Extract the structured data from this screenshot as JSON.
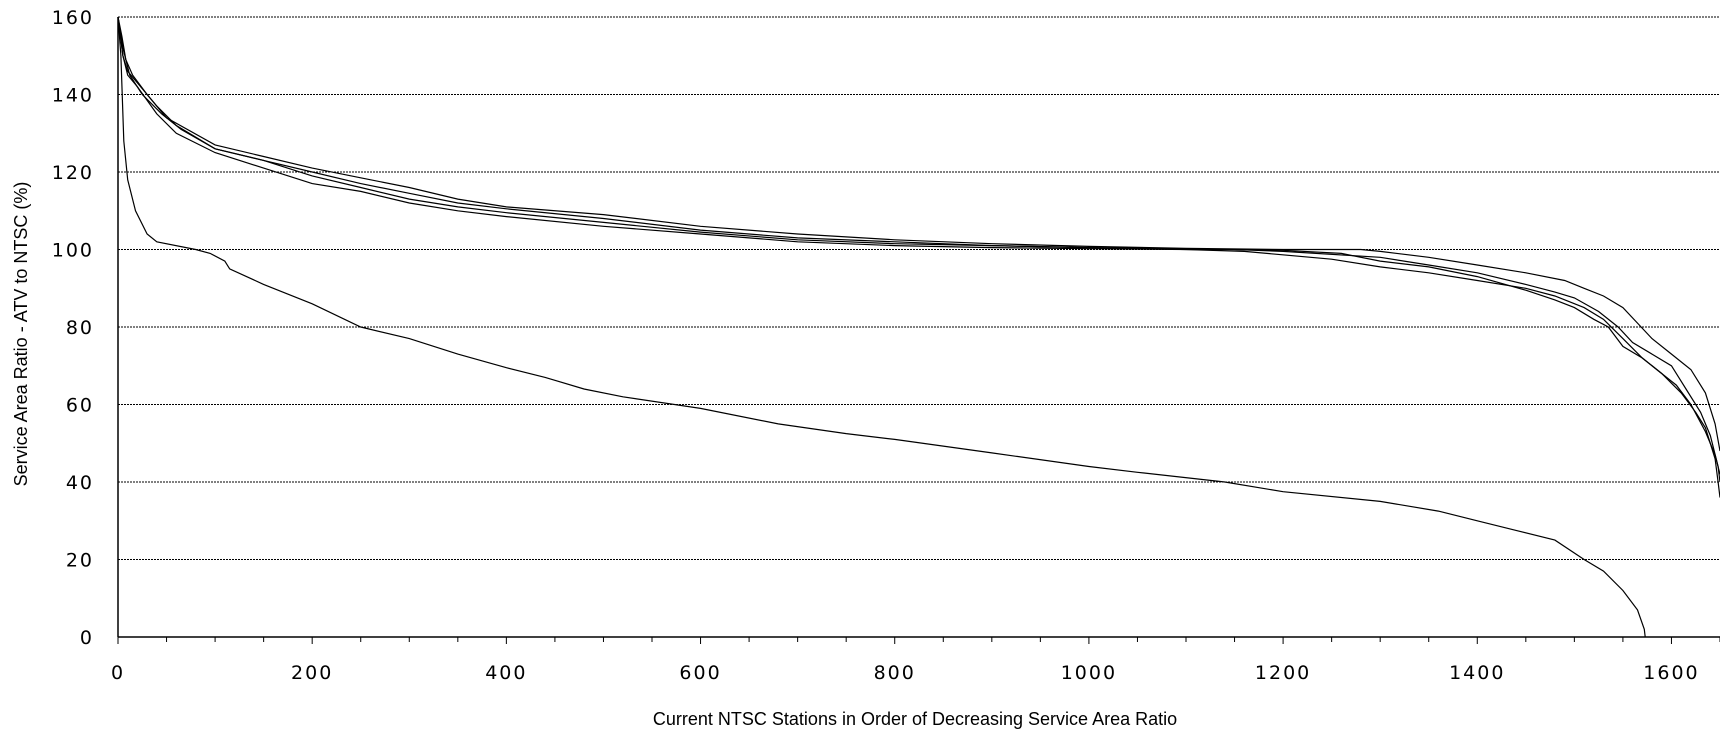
{
  "chart_data": {
    "type": "line",
    "title": "",
    "xlabel": "Current NTSC Stations in Order of Decreasing Service Area Ratio",
    "ylabel": "Service Area Ratio - ATV to NTSC (%)",
    "xlim": [
      0,
      1650
    ],
    "ylim": [
      0,
      160
    ],
    "x_ticks": [
      0,
      200,
      400,
      600,
      800,
      1000,
      1200,
      1400,
      1600
    ],
    "y_ticks": [
      0,
      20,
      40,
      60,
      80,
      100,
      120,
      140,
      160
    ],
    "grid": true,
    "legend": "none",
    "series": [
      {
        "points": [
          [
            0,
            160
          ],
          [
            3,
            150
          ],
          [
            6,
            128
          ],
          [
            10,
            118
          ],
          [
            18,
            110
          ],
          [
            30,
            104
          ],
          [
            40,
            102
          ],
          [
            80,
            100
          ],
          [
            95,
            99
          ],
          [
            110,
            97
          ],
          [
            115,
            95
          ],
          [
            150,
            91
          ],
          [
            200,
            86
          ],
          [
            250,
            80
          ],
          [
            300,
            77
          ],
          [
            350,
            73
          ],
          [
            400,
            69.5
          ],
          [
            440,
            67
          ],
          [
            480,
            64
          ],
          [
            520,
            62
          ],
          [
            600,
            59
          ],
          [
            680,
            55
          ],
          [
            750,
            52.5
          ],
          [
            800,
            51
          ],
          [
            900,
            47.5
          ],
          [
            1000,
            44
          ],
          [
            1050,
            42.5
          ],
          [
            1140,
            40
          ],
          [
            1200,
            37.5
          ],
          [
            1300,
            35
          ],
          [
            1360,
            32.5
          ],
          [
            1400,
            30
          ],
          [
            1440,
            27.5
          ],
          [
            1480,
            25
          ],
          [
            1510,
            20
          ],
          [
            1530,
            17
          ],
          [
            1550,
            12
          ],
          [
            1565,
            7
          ],
          [
            1572,
            2
          ],
          [
            1573,
            0
          ]
        ]
      },
      {
        "points": [
          [
            0,
            160
          ],
          [
            5,
            150
          ],
          [
            10,
            145
          ],
          [
            20,
            142
          ],
          [
            40,
            135
          ],
          [
            60,
            130
          ],
          [
            100,
            125
          ],
          [
            150,
            121
          ],
          [
            200,
            117
          ],
          [
            250,
            115
          ],
          [
            300,
            112
          ],
          [
            350,
            110
          ],
          [
            400,
            108.5
          ],
          [
            500,
            106
          ],
          [
            600,
            104
          ],
          [
            700,
            102
          ],
          [
            800,
            101
          ],
          [
            900,
            100.5
          ],
          [
            1000,
            100.2
          ],
          [
            1100,
            100
          ],
          [
            1160,
            99.5
          ],
          [
            1250,
            97.5
          ],
          [
            1300,
            95.5
          ],
          [
            1350,
            94
          ],
          [
            1400,
            92
          ],
          [
            1450,
            90
          ],
          [
            1480,
            88
          ],
          [
            1510,
            85
          ],
          [
            1530,
            82
          ],
          [
            1550,
            77
          ],
          [
            1570,
            72
          ],
          [
            1590,
            68
          ],
          [
            1610,
            63
          ],
          [
            1625,
            58
          ],
          [
            1635,
            54
          ],
          [
            1640,
            50
          ],
          [
            1645,
            46
          ],
          [
            1648,
            40
          ],
          [
            1650,
            36
          ]
        ]
      },
      {
        "points": [
          [
            0,
            160
          ],
          [
            5,
            152
          ],
          [
            12,
            145
          ],
          [
            25,
            140
          ],
          [
            45,
            135
          ],
          [
            65,
            131
          ],
          [
            100,
            126
          ],
          [
            150,
            123
          ],
          [
            200,
            120
          ],
          [
            250,
            117
          ],
          [
            300,
            114.5
          ],
          [
            350,
            112
          ],
          [
            400,
            110.5
          ],
          [
            500,
            108
          ],
          [
            600,
            105
          ],
          [
            700,
            103
          ],
          [
            800,
            102
          ],
          [
            900,
            101
          ],
          [
            1000,
            100.5
          ],
          [
            1100,
            100
          ],
          [
            1150,
            100
          ],
          [
            1200,
            99.5
          ],
          [
            1300,
            98
          ],
          [
            1350,
            96
          ],
          [
            1400,
            94
          ],
          [
            1450,
            91
          ],
          [
            1480,
            89
          ],
          [
            1500,
            87.5
          ],
          [
            1525,
            84
          ],
          [
            1545,
            80
          ],
          [
            1560,
            76
          ],
          [
            1580,
            73
          ],
          [
            1600,
            70
          ],
          [
            1615,
            64
          ],
          [
            1630,
            58
          ],
          [
            1640,
            52
          ],
          [
            1648,
            44
          ],
          [
            1650,
            40
          ]
        ]
      },
      {
        "points": [
          [
            0,
            160
          ],
          [
            5,
            150
          ],
          [
            10,
            146
          ],
          [
            20,
            143
          ],
          [
            40,
            137
          ],
          [
            60,
            132
          ],
          [
            100,
            126
          ],
          [
            150,
            123
          ],
          [
            200,
            119
          ],
          [
            250,
            116
          ],
          [
            300,
            113
          ],
          [
            350,
            111
          ],
          [
            400,
            109.5
          ],
          [
            500,
            107
          ],
          [
            600,
            104.5
          ],
          [
            700,
            102.5
          ],
          [
            800,
            101.5
          ],
          [
            900,
            101
          ],
          [
            1000,
            100.5
          ],
          [
            1100,
            100.2
          ],
          [
            1200,
            99.8
          ],
          [
            1260,
            99
          ],
          [
            1300,
            97
          ],
          [
            1350,
            95.5
          ],
          [
            1400,
            93
          ],
          [
            1450,
            89.5
          ],
          [
            1480,
            87
          ],
          [
            1500,
            85
          ],
          [
            1520,
            82
          ],
          [
            1535,
            80
          ],
          [
            1550,
            75
          ],
          [
            1570,
            72
          ],
          [
            1590,
            68
          ],
          [
            1605,
            65
          ],
          [
            1620,
            60
          ],
          [
            1635,
            53
          ],
          [
            1645,
            47
          ],
          [
            1650,
            42
          ]
        ]
      },
      {
        "points": [
          [
            0,
            160
          ],
          [
            4,
            155
          ],
          [
            8,
            149
          ],
          [
            15,
            145
          ],
          [
            30,
            140
          ],
          [
            50,
            134
          ],
          [
            100,
            127
          ],
          [
            150,
            124
          ],
          [
            200,
            121
          ],
          [
            250,
            118.5
          ],
          [
            300,
            116
          ],
          [
            350,
            113
          ],
          [
            400,
            111
          ],
          [
            500,
            109
          ],
          [
            600,
            106
          ],
          [
            700,
            104
          ],
          [
            800,
            102.5
          ],
          [
            900,
            101.5
          ],
          [
            1000,
            100.8
          ],
          [
            1100,
            100.3
          ],
          [
            1200,
            100
          ],
          [
            1280,
            100
          ],
          [
            1300,
            99.5
          ],
          [
            1350,
            98
          ],
          [
            1400,
            96
          ],
          [
            1450,
            94
          ],
          [
            1490,
            92
          ],
          [
            1510,
            90
          ],
          [
            1530,
            88
          ],
          [
            1550,
            85
          ],
          [
            1565,
            81
          ],
          [
            1580,
            77
          ],
          [
            1600,
            73
          ],
          [
            1620,
            69
          ],
          [
            1635,
            63
          ],
          [
            1645,
            55
          ],
          [
            1650,
            48
          ]
        ]
      }
    ]
  }
}
